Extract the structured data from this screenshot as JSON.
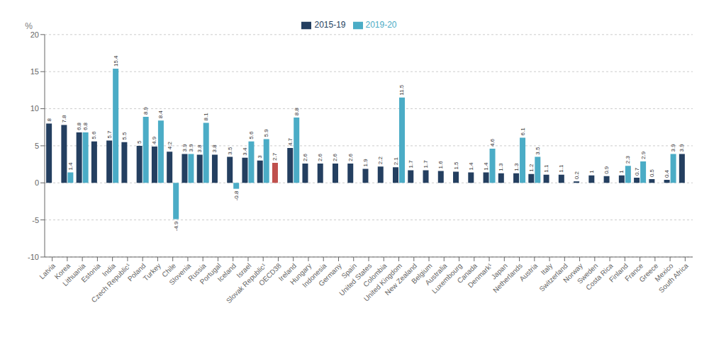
{
  "chart_data": {
    "type": "bar",
    "categories": [
      "Latvia",
      "Korea",
      "Lithuania",
      "Estonia",
      "India",
      "Czech Republic¹",
      "Poland",
      "Turkey",
      "Chile",
      "Slovenia",
      "Russia",
      "Portugal",
      "Iceland",
      "Israel",
      "Slovak Republic¹",
      "OECD38",
      "Ireland",
      "Hungary",
      "Indonesia",
      "Germany",
      "Spain",
      "United States",
      "Colombia",
      "United Kingdom",
      "New Zealand",
      "Belgium",
      "Australia",
      "Luxembourg",
      "Canada",
      "Denmark¹",
      "Japan",
      "Netherlands",
      "Austria",
      "Italy",
      "Switzerland",
      "Norway",
      "Sweden",
      "Costa Rica",
      "Finland",
      "France",
      "Greece",
      "Mexico",
      "South Africa"
    ],
    "series": [
      {
        "name": "2015-19",
        "color": "#243f60",
        "colors": [
          "#243f60",
          "#243f60",
          "#243f60",
          "#243f60",
          "#243f60",
          "#243f60",
          "#243f60",
          "#243f60",
          "#243f60",
          "#243f60",
          "#243f60",
          "#243f60",
          "#243f60",
          "#243f60",
          "#243f60",
          "#c0504d",
          "#243f60",
          "#243f60",
          "#243f60",
          "#243f60",
          "#243f60",
          "#243f60",
          "#243f60",
          "#243f60",
          "#243f60",
          "#243f60",
          "#243f60",
          "#243f60",
          "#243f60",
          "#243f60",
          "#243f60",
          "#243f60",
          "#243f60",
          "#243f60",
          "#243f60",
          "#243f60",
          "#243f60",
          "#243f60",
          "#243f60",
          "#243f60",
          "#243f60",
          "#243f60",
          "#243f60"
        ],
        "values": [
          8.0,
          7.8,
          6.8,
          5.6,
          5.7,
          5.5,
          5.0,
          4.9,
          4.2,
          3.9,
          3.8,
          3.8,
          3.5,
          3.4,
          3.0,
          2.7,
          4.7,
          2.6,
          2.6,
          2.6,
          2.6,
          1.9,
          2.2,
          2.1,
          1.7,
          1.7,
          1.6,
          1.5,
          1.4,
          1.4,
          1.3,
          1.3,
          1.2,
          1.1,
          1.1,
          0.2,
          1.0,
          0.9,
          1.0,
          0.7,
          0.5,
          0.4,
          3.9
        ]
      },
      {
        "name": "2019-20",
        "color": "#4bacc6",
        "values": [
          null,
          1.4,
          6.8,
          null,
          15.4,
          null,
          8.9,
          8.4,
          -4.9,
          3.9,
          8.1,
          null,
          -0.8,
          5.6,
          5.9,
          null,
          8.8,
          null,
          null,
          null,
          null,
          null,
          null,
          11.5,
          null,
          null,
          null,
          null,
          null,
          4.6,
          null,
          6.1,
          3.5,
          null,
          null,
          null,
          null,
          null,
          2.3,
          2.9,
          null,
          3.9,
          null
        ]
      }
    ],
    "ylabel": "%",
    "ylim": [
      -10,
      20
    ],
    "yticks": [
      -10,
      -5,
      0,
      5,
      10,
      15,
      20
    ],
    "grid": true,
    "legend": "top",
    "data_labels": true
  }
}
